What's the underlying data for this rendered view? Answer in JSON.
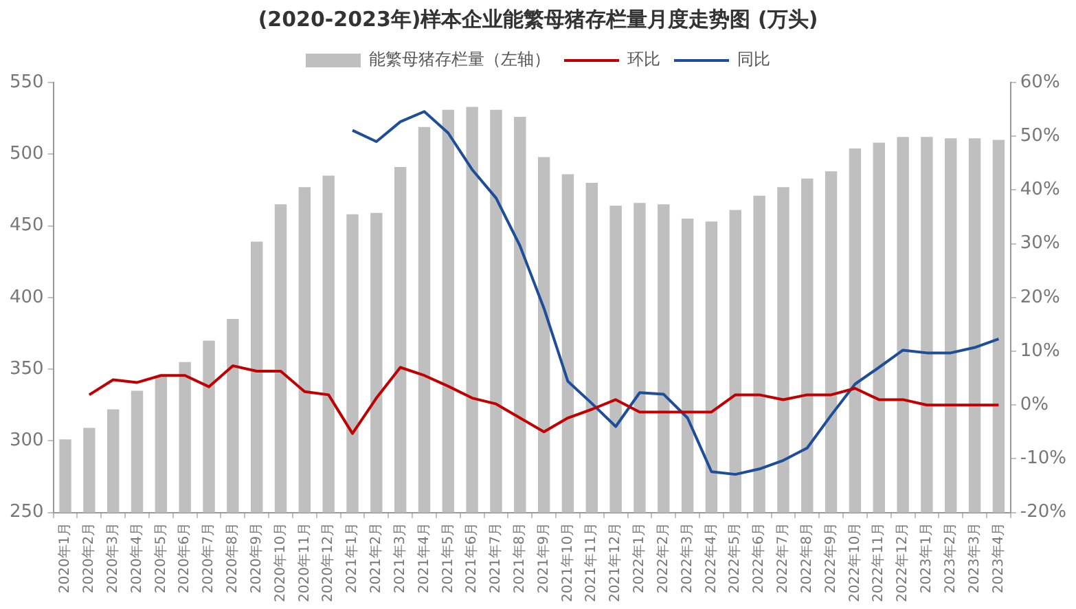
{
  "chart_data": {
    "type": "bar",
    "title": "(2020-2023年)样本企业能繁母猪存栏量月度走势图 (万头)",
    "categories": [
      "2020年1月",
      "2020年2月",
      "2020年3月",
      "2020年4月",
      "2020年5月",
      "2020年6月",
      "2020年7月",
      "2020年8月",
      "2020年9月",
      "2020年10月",
      "2020年11月",
      "2020年12月",
      "2021年1月",
      "2021年2月",
      "2021年3月",
      "2021年4月",
      "2021年5月",
      "2021年6月",
      "2021年7月",
      "2021年8月",
      "2021年9月",
      "2021年10月",
      "2021年11月",
      "2021年12月",
      "2022年1月",
      "2022年2月",
      "2022年3月",
      "2022年4月",
      "2022年5月",
      "2022年6月",
      "2022年7月",
      "2022年8月",
      "2022年9月",
      "2022年10月",
      "2022年11月",
      "2022年12月",
      "2023年1月",
      "2023年2月",
      "2023年3月",
      "2023年4月"
    ],
    "series": [
      {
        "name": "能繁母猪存栏量（左轴）",
        "color": "#bfbfbf",
        "values": [
          301,
          309,
          322,
          335,
          345,
          355,
          370,
          385,
          439,
          465,
          477,
          485,
          458,
          459,
          491,
          519,
          531,
          533,
          531,
          526,
          498,
          486,
          480,
          464,
          466,
          465,
          455,
          453,
          461,
          471,
          477,
          483,
          488,
          504,
          508,
          512,
          512,
          511,
          511,
          510
        ]
      },
      {
        "name": "环比",
        "type": "line",
        "axis": "y2",
        "color": "#c00000",
        "values": [
          null,
          1.9,
          4.7,
          4.2,
          5.5,
          5.5,
          3.4,
          7.3,
          6.3,
          6.3,
          2.5,
          1.9,
          -5.3,
          1.3,
          7,
          5.5,
          3.5,
          1.3,
          0.2,
          -2.4,
          -5,
          -2.4,
          -0.8,
          1,
          -1.3,
          -1.3,
          -1.3,
          -1.3,
          1.9,
          1.9,
          1,
          1.9,
          1.9,
          3.1,
          1,
          1,
          0,
          0,
          0,
          0
        ]
      },
      {
        "name": "同比",
        "type": "line",
        "axis": "y2",
        "color": "#1f4e99",
        "values": [
          null,
          null,
          null,
          null,
          null,
          null,
          null,
          null,
          null,
          null,
          null,
          null,
          51.1,
          49,
          52.7,
          54.6,
          50.6,
          43.8,
          38.5,
          29.6,
          18,
          4.4,
          0.3,
          -4,
          2.3,
          2,
          -2.4,
          -12.4,
          -12.9,
          -11.9,
          -10.3,
          -8,
          -1.9,
          3.9,
          7,
          10.2,
          9.7,
          9.7,
          10.7,
          12.3
        ]
      }
    ],
    "ylim": [
      250,
      550
    ],
    "yticks": [
      250,
      300,
      350,
      400,
      450,
      500,
      550
    ],
    "y2lim": [
      -20,
      60
    ],
    "y2ticks": [
      {
        "value": -20,
        "label": "-20%"
      },
      {
        "value": -10,
        "label": "-10%"
      },
      {
        "value": 0,
        "label": "0%"
      },
      {
        "value": 10,
        "label": "10%"
      },
      {
        "value": 20,
        "label": "20%"
      },
      {
        "value": 30,
        "label": "30%"
      },
      {
        "value": 40,
        "label": "40%"
      },
      {
        "value": 50,
        "label": "50%"
      },
      {
        "value": 60,
        "label": "60%"
      }
    ],
    "grid": false,
    "legend": "top",
    "marker": "none",
    "line_style": "solid"
  }
}
